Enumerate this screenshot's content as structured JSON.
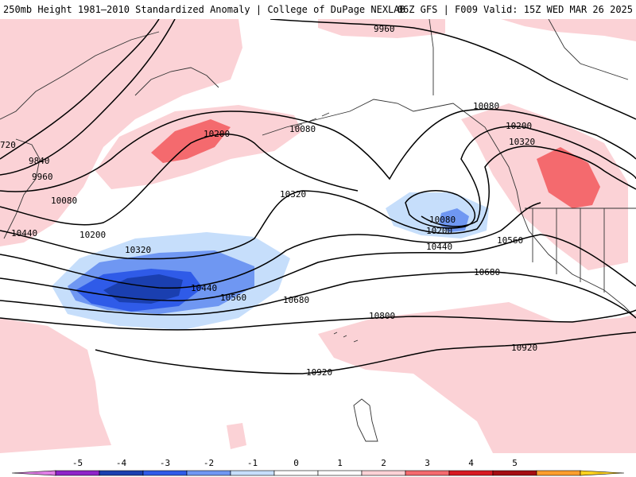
{
  "header": {
    "title_left": "250mb Height 1981–2010 Standardized Anomaly | College of DuPage NEXLAB",
    "title_right": "06Z GFS | F009 Valid: 15Z WED MAR 26 2025"
  },
  "contour_labels": [
    "9960",
    "9840",
    "9960",
    "10080",
    "10200",
    "10440",
    "720",
    "10200",
    "10080",
    "10320",
    "10320",
    "10440",
    "10560",
    "10680",
    "10080",
    "10200",
    "10440",
    "10560",
    "10080",
    "10200",
    "10320",
    "10680",
    "10800",
    "10920",
    "10920"
  ],
  "colorbar": {
    "ticks": [
      "-5",
      "-4",
      "-3",
      "-2",
      "-1",
      "0",
      "1",
      "2",
      "3",
      "4",
      "5"
    ],
    "colors": [
      "#e07ee6",
      "#8e24c9",
      "#1a3fb0",
      "#2f5be8",
      "#6f97f2",
      "#c6defb",
      "#ffffff",
      "#ffffff",
      "#fbd2d6",
      "#f46a6e",
      "#d81a22",
      "#a50d12",
      "#ff9e2c",
      "#ffd21f"
    ]
  },
  "map_colors": {
    "pos1": "#fbd2d6",
    "pos2": "#f46a6e",
    "neg1": "#c6defb",
    "neg2": "#6f97f2",
    "neg3": "#2f5be8",
    "neg4": "#1a3fb0"
  }
}
